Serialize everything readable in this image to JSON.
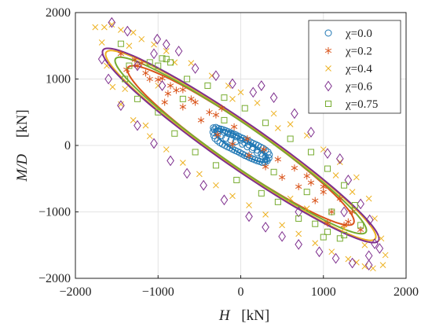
{
  "chart_data": {
    "type": "scatter",
    "xlim": [
      -2000,
      2000
    ],
    "ylim": [
      -2000,
      2000
    ],
    "x_ticks": [
      -2000,
      -1000,
      0,
      1000,
      2000
    ],
    "y_ticks": [
      -2000,
      -1000,
      0,
      1000,
      2000
    ],
    "x_tick_labels": [
      "−2000",
      "−1000",
      "0",
      "1000",
      "2000"
    ],
    "y_tick_labels": [
      "−2000",
      "−1000",
      "0",
      "1000",
      "2000"
    ],
    "xlabel": {
      "symbol": "H",
      "unit": "[kN]"
    },
    "ylabel": {
      "symbol": "M/D",
      "unit": "[kN]"
    },
    "grid": true,
    "legend_position": "top-right",
    "series": [
      {
        "name": "χ=0.0",
        "chi": "0.0",
        "marker": "circle",
        "color": "#1f77b4",
        "fit_ellipse": {
          "a": 400,
          "b": 100,
          "angle_deg": -37
        },
        "points": [
          [
            -330,
            265
          ],
          [
            -300,
            270
          ],
          [
            -270,
            255
          ],
          [
            -240,
            245
          ],
          [
            -210,
            235
          ],
          [
            -180,
            220
          ],
          [
            -150,
            205
          ],
          [
            -120,
            190
          ],
          [
            -90,
            175
          ],
          [
            -60,
            160
          ],
          [
            -30,
            140
          ],
          [
            0,
            120
          ],
          [
            30,
            105
          ],
          [
            60,
            85
          ],
          [
            90,
            70
          ],
          [
            120,
            50
          ],
          [
            150,
            30
          ],
          [
            180,
            15
          ],
          [
            210,
            -5
          ],
          [
            240,
            -25
          ],
          [
            270,
            -45
          ],
          [
            300,
            -70
          ],
          [
            330,
            -100
          ],
          [
            345,
            -140
          ],
          [
            340,
            -190
          ],
          [
            320,
            -230
          ],
          [
            290,
            -250
          ],
          [
            260,
            -255
          ],
          [
            230,
            -240
          ],
          [
            200,
            -230
          ],
          [
            170,
            -215
          ],
          [
            140,
            -200
          ],
          [
            110,
            -185
          ],
          [
            80,
            -165
          ],
          [
            50,
            -150
          ],
          [
            20,
            -130
          ],
          [
            -10,
            -110
          ],
          [
            -40,
            -90
          ],
          [
            -70,
            -75
          ],
          [
            -100,
            -55
          ],
          [
            -130,
            -35
          ],
          [
            -160,
            -20
          ],
          [
            -190,
            0
          ],
          [
            -220,
            20
          ],
          [
            -250,
            40
          ],
          [
            -280,
            70
          ],
          [
            -310,
            105
          ],
          [
            -325,
            150
          ],
          [
            -335,
            200
          ],
          [
            -320,
            240
          ],
          [
            -260,
            230
          ],
          [
            -200,
            200
          ],
          [
            -150,
            180
          ],
          [
            -100,
            160
          ],
          [
            -50,
            130
          ],
          [
            0,
            80
          ],
          [
            50,
            40
          ],
          [
            100,
            10
          ],
          [
            150,
            -30
          ],
          [
            200,
            -70
          ],
          [
            250,
            -120
          ],
          [
            300,
            -170
          ],
          [
            -280,
            180
          ],
          [
            -230,
            150
          ],
          [
            -180,
            110
          ],
          [
            -120,
            80
          ],
          [
            -60,
            60
          ],
          [
            20,
            20
          ],
          [
            80,
            -20
          ],
          [
            140,
            -60
          ],
          [
            200,
            -110
          ],
          [
            260,
            -160
          ],
          [
            310,
            -210
          ]
        ]
      },
      {
        "name": "χ=0.2",
        "chi": "0.2",
        "marker": "asterisk",
        "color": "#d95319",
        "fit_ellipse": {
          "a": 1800,
          "b": 280,
          "angle_deg": -41
        },
        "points": [
          [
            -1450,
            1380
          ],
          [
            -1280,
            1290
          ],
          [
            -1200,
            1240
          ],
          [
            -950,
            1010
          ],
          [
            -700,
            840
          ],
          [
            -1100,
            1000
          ],
          [
            -880,
            780
          ],
          [
            -700,
            580
          ],
          [
            -480,
            380
          ],
          [
            -280,
            160
          ],
          [
            -100,
            20
          ],
          [
            100,
            -150
          ],
          [
            300,
            -320
          ],
          [
            500,
            -480
          ],
          [
            700,
            -620
          ],
          [
            900,
            -830
          ],
          [
            1100,
            -1000
          ],
          [
            1300,
            -1150
          ],
          [
            1450,
            -1270
          ],
          [
            1350,
            -1000
          ],
          [
            1200,
            -800
          ],
          [
            1000,
            -620
          ],
          [
            800,
            -460
          ],
          [
            650,
            -340
          ],
          [
            450,
            -210
          ],
          [
            280,
            -60
          ],
          [
            80,
            100
          ],
          [
            -80,
            280
          ],
          [
            -300,
            460
          ],
          [
            -550,
            650
          ],
          [
            -780,
            830
          ],
          [
            -1000,
            990
          ],
          [
            -1250,
            1200
          ],
          [
            -1380,
            1140
          ],
          [
            -1150,
            1090
          ],
          [
            -850,
            900
          ],
          [
            -600,
            700
          ],
          [
            -380,
            500
          ],
          [
            1000,
            -700
          ],
          [
            850,
            -560
          ],
          [
            -230,
            560
          ],
          [
            -920,
            650
          ],
          [
            1050,
            -1170
          ],
          [
            1250,
            -1200
          ]
        ]
      },
      {
        "name": "χ=0.4",
        "chi": "0.4",
        "marker": "x",
        "color": "#edb120",
        "fit_ellipse": {
          "a": 2150,
          "b": 300,
          "angle_deg": -41
        },
        "points": [
          [
            -1760,
            1780
          ],
          [
            -1650,
            1780
          ],
          [
            -1560,
            1820
          ],
          [
            -1450,
            1740
          ],
          [
            -1300,
            1700
          ],
          [
            -1200,
            1600
          ],
          [
            -1050,
            1520
          ],
          [
            -900,
            1420
          ],
          [
            -600,
            1240
          ],
          [
            -350,
            1050
          ],
          [
            -150,
            900
          ],
          [
            0,
            800
          ],
          [
            200,
            640
          ],
          [
            400,
            480
          ],
          [
            600,
            320
          ],
          [
            800,
            150
          ],
          [
            1000,
            -60
          ],
          [
            1200,
            -250
          ],
          [
            1400,
            -480
          ],
          [
            1550,
            -800
          ],
          [
            1620,
            -1100
          ],
          [
            1700,
            -1400
          ],
          [
            1750,
            -1650
          ],
          [
            1720,
            -1800
          ],
          [
            1600,
            -1850
          ],
          [
            1500,
            -1820
          ],
          [
            1400,
            -1760
          ],
          [
            1300,
            -1710
          ],
          [
            1100,
            -1600
          ],
          [
            900,
            -1470
          ],
          [
            700,
            -1330
          ],
          [
            500,
            -1200
          ],
          [
            300,
            -1040
          ],
          [
            100,
            -900
          ],
          [
            -100,
            -760
          ],
          [
            -300,
            -600
          ],
          [
            -500,
            -430
          ],
          [
            -700,
            -260
          ],
          [
            -900,
            -60
          ],
          [
            -1100,
            140
          ],
          [
            -1300,
            380
          ],
          [
            -1450,
            620
          ],
          [
            -1550,
            880
          ],
          [
            -1620,
            1200
          ],
          [
            -1680,
            1550
          ],
          [
            -1350,
            1500
          ],
          [
            -800,
            1250
          ],
          [
            -100,
            700
          ],
          [
            450,
            260
          ],
          [
            1150,
            -450
          ],
          [
            1350,
            -700
          ],
          [
            1500,
            -1500
          ],
          [
            1250,
            -1250
          ],
          [
            -1150,
            300
          ],
          [
            -1400,
            850
          ],
          [
            -1000,
            900
          ],
          [
            800,
            -950
          ],
          [
            600,
            -800
          ]
        ]
      },
      {
        "name": "χ=0.6",
        "chi": "0.6",
        "marker": "diamond",
        "color": "#7e2f8e",
        "fit_ellipse": {
          "a": 2200,
          "b": 310,
          "angle_deg": -41
        },
        "points": [
          [
            -1560,
            1850
          ],
          [
            -1370,
            1720
          ],
          [
            -1010,
            1600
          ],
          [
            -900,
            1520
          ],
          [
            -750,
            1420
          ],
          [
            -550,
            1160
          ],
          [
            -300,
            1050
          ],
          [
            -100,
            930
          ],
          [
            150,
            800
          ],
          [
            400,
            720
          ],
          [
            650,
            480
          ],
          [
            850,
            200
          ],
          [
            1050,
            -120
          ],
          [
            1300,
            -520
          ],
          [
            1450,
            -880
          ],
          [
            1560,
            -1120
          ],
          [
            1620,
            -1480
          ],
          [
            1680,
            -1550
          ],
          [
            1550,
            -1660
          ],
          [
            1350,
            -1770
          ],
          [
            1150,
            -1700
          ],
          [
            950,
            -1600
          ],
          [
            700,
            -1490
          ],
          [
            500,
            -1370
          ],
          [
            300,
            -1230
          ],
          [
            100,
            -1070
          ],
          [
            -200,
            -820
          ],
          [
            -450,
            -600
          ],
          [
            -650,
            -420
          ],
          [
            -850,
            -230
          ],
          [
            -1050,
            30
          ],
          [
            -1250,
            300
          ],
          [
            -1450,
            600
          ],
          [
            -1600,
            1000
          ],
          [
            -1680,
            1300
          ],
          [
            -1250,
            1200
          ],
          [
            -950,
            900
          ],
          [
            1200,
            -200
          ],
          [
            1550,
            -1800
          ],
          [
            250,
            900
          ],
          [
            -1050,
            1380
          ],
          [
            700,
            -1000
          ],
          [
            1250,
            -1000
          ]
        ]
      },
      {
        "name": "χ=0.75",
        "chi": "0.75",
        "marker": "square",
        "color": "#77ac30",
        "fit_ellipse": {
          "a": 2000,
          "b": 280,
          "angle_deg": -41
        },
        "points": [
          [
            -1450,
            1530
          ],
          [
            -1000,
            1200
          ],
          [
            -1100,
            1250
          ],
          [
            -950,
            1310
          ],
          [
            -850,
            1250
          ],
          [
            -650,
            1000
          ],
          [
            -400,
            900
          ],
          [
            -200,
            720
          ],
          [
            50,
            560
          ],
          [
            300,
            340
          ],
          [
            600,
            100
          ],
          [
            850,
            -100
          ],
          [
            1050,
            -350
          ],
          [
            1250,
            -600
          ],
          [
            1380,
            -900
          ],
          [
            1450,
            -1200
          ],
          [
            1250,
            -1350
          ],
          [
            1050,
            -1300
          ],
          [
            900,
            -1180
          ],
          [
            700,
            -1100
          ],
          [
            450,
            -850
          ],
          [
            250,
            -720
          ],
          [
            -50,
            -520
          ],
          [
            -300,
            -300
          ],
          [
            -550,
            -100
          ],
          [
            -800,
            180
          ],
          [
            -1000,
            500
          ],
          [
            -1250,
            700
          ],
          [
            -1400,
            1000
          ],
          [
            -1350,
            1200
          ],
          [
            -900,
            1300
          ],
          [
            1000,
            -1380
          ],
          [
            1200,
            -1400
          ],
          [
            -200,
            380
          ],
          [
            400,
            -400
          ],
          [
            800,
            -700
          ],
          [
            -700,
            700
          ],
          [
            1100,
            -1000
          ]
        ]
      }
    ]
  }
}
